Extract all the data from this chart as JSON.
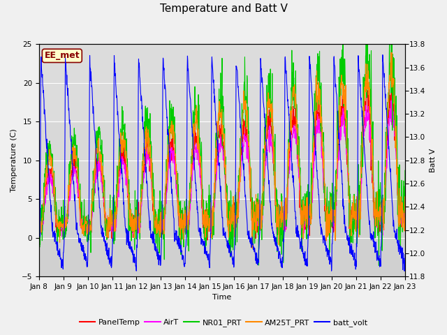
{
  "title": "Temperature and Batt V",
  "xlabel": "Time",
  "ylabel_left": "Temperature (C)",
  "ylabel_right": "Batt V",
  "ylim_left": [
    -5,
    25
  ],
  "ylim_right": [
    11.8,
    13.8
  ],
  "x_tick_labels": [
    "Jan 8",
    "Jan 9",
    "Jan 10",
    "Jan 11",
    "Jan 12",
    "Jan 13",
    "Jan 14",
    "Jan 15",
    "Jan 16",
    "Jan 17",
    "Jan 18",
    "Jan 19",
    "Jan 20",
    "Jan 21",
    "Jan 22",
    "Jan 23"
  ],
  "yticks_left": [
    -5,
    0,
    5,
    10,
    15,
    20,
    25
  ],
  "yticks_right": [
    11.8,
    12.0,
    12.2,
    12.4,
    12.6,
    12.8,
    13.0,
    13.2,
    13.4,
    13.6,
    13.8
  ],
  "legend_labels": [
    "PanelTemp",
    "AirT",
    "NR01_PRT",
    "AM25T_PRT",
    "batt_volt"
  ],
  "legend_colors": [
    "#ff0000",
    "#ff00ff",
    "#00cc00",
    "#ff8800",
    "#0000ff"
  ],
  "watermark_text": "EE_met",
  "watermark_color": "#880000",
  "watermark_bg": "#ffffcc",
  "bg_color_upper": "#dcdcdc",
  "bg_color_lower": "#d0d0d0",
  "grid_color": "#ffffff",
  "title_fontsize": 11,
  "axis_fontsize": 8,
  "tick_fontsize": 7.5,
  "legend_fontsize": 8,
  "line_width": 0.8,
  "n_days": 15,
  "pts_per_day": 96
}
